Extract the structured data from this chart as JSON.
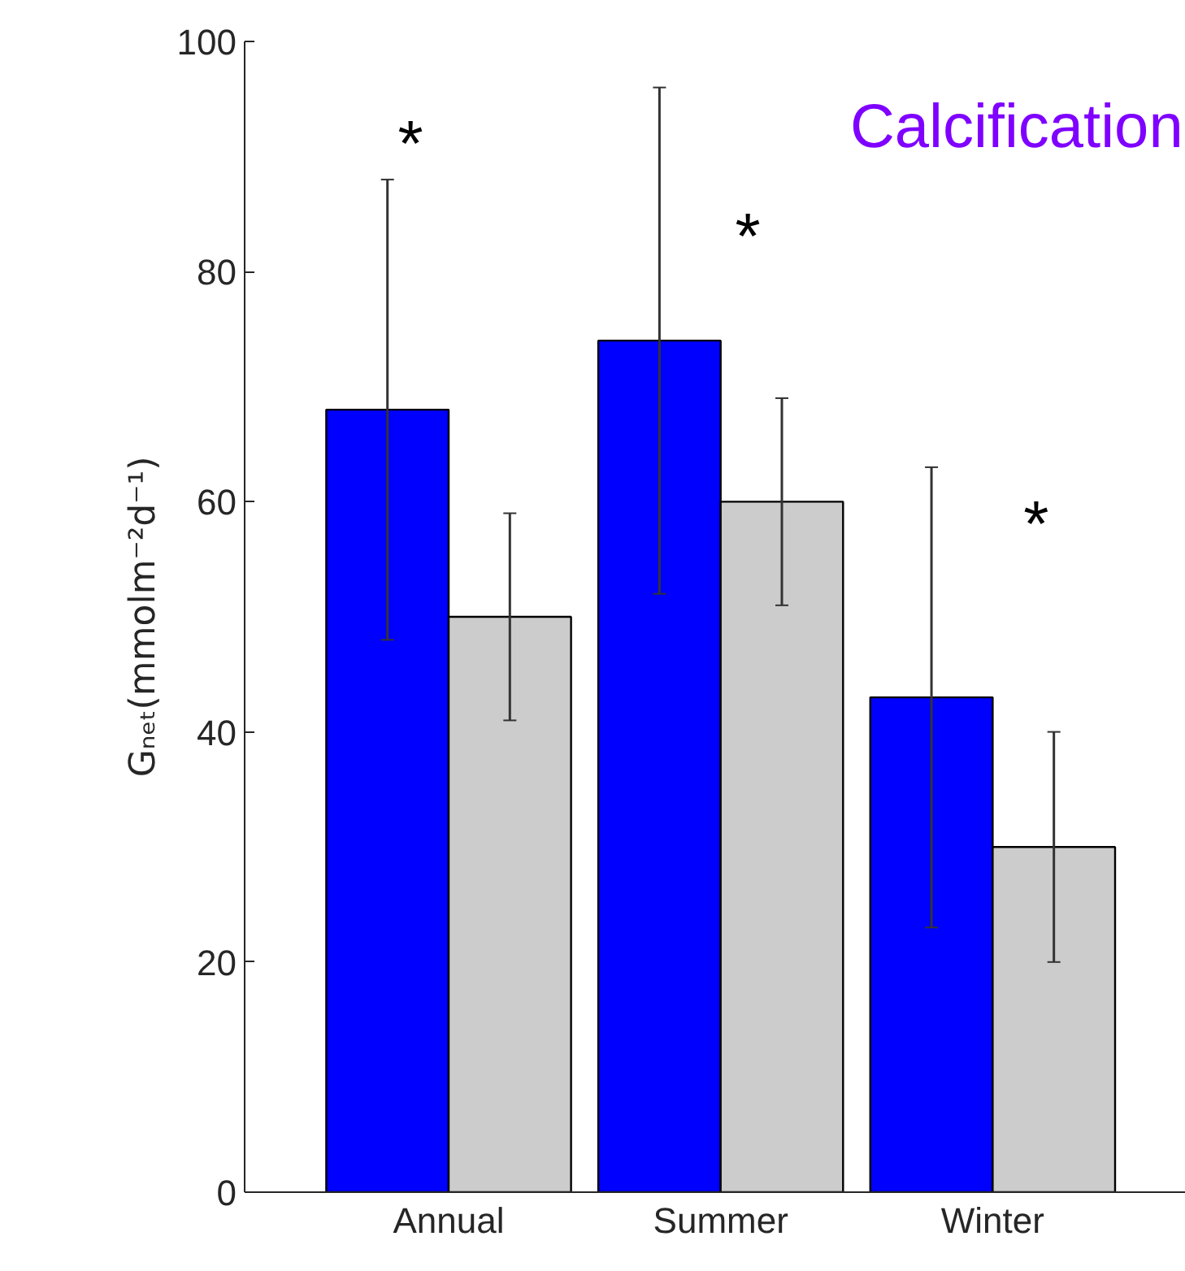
{
  "chart_data": {
    "type": "bar",
    "ylabel": "Gₙₑₜ(mmolm⁻²d⁻¹)",
    "categories": [
      "Annual",
      "Summer",
      "Winter"
    ],
    "series": [
      {
        "color": "#0000ff",
        "values": [
          68,
          74,
          43
        ],
        "errors": [
          20,
          22,
          20
        ]
      },
      {
        "color": "#cccccc",
        "values": [
          50,
          60,
          30
        ],
        "errors": [
          9,
          9,
          10
        ]
      }
    ],
    "ylim": [
      0,
      100
    ],
    "yticks": [
      0,
      20,
      40,
      60,
      80,
      100
    ],
    "annotations": [
      "*",
      "*",
      "*",
      "Calcification"
    ]
  }
}
